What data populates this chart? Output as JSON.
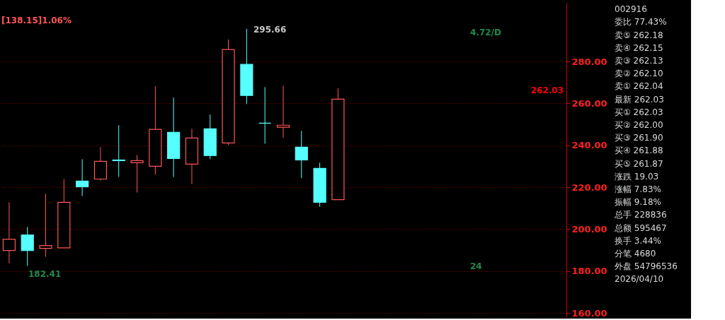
{
  "chart_data": [
    {
      "type": "candlestick",
      "categories": [
        null,
        null,
        null,
        null,
        null,
        null,
        null,
        null,
        null,
        null,
        null,
        null,
        null,
        null,
        null,
        null,
        null,
        null,
        null,
        null,
        null,
        null,
        null,
        null,
        null,
        null,
        null,
        null,
        null,
        null,
        null
      ],
      "ohlc": [
        [
          189.8,
          212.8,
          183.7,
          195.2
        ],
        [
          197.2,
          201.0,
          182.41,
          189.8
        ],
        [
          190.8,
          216.8,
          186.8,
          192.2
        ],
        [
          191.1,
          223.9,
          191.1,
          212.8
        ],
        [
          222.9,
          233.4,
          215.8,
          220.2
        ],
        [
          223.9,
          239.1,
          223.2,
          232.4
        ],
        [
          233.0,
          249.6,
          224.9,
          232.7
        ],
        [
          231.7,
          235.4,
          217.5,
          232.7
        ],
        [
          230.0,
          268.2,
          226.0,
          247.6
        ],
        [
          246.2,
          262.8,
          224.9,
          233.7
        ],
        [
          231.0,
          247.9,
          221.6,
          243.5
        ],
        [
          247.9,
          254.7,
          233.4,
          235.1
        ],
        [
          241.1,
          290.5,
          240.1,
          285.7
        ],
        [
          278.6,
          295.66,
          259.7,
          263.8
        ],
        [
          250.6,
          267.8,
          240.8,
          250.6
        ],
        [
          248.6,
          268.5,
          243.5,
          249.6
        ],
        [
          239.1,
          246.9,
          224.3,
          233.0
        ],
        [
          229.0,
          231.7,
          210.7,
          212.8
        ],
        [
          214.1,
          267.2,
          214.1,
          262.03
        ],
        null,
        null,
        null,
        null,
        null,
        null,
        null,
        null,
        null,
        null,
        null,
        null
      ],
      "colors": [
        "#ff5555",
        "#55ffff",
        "#ff5555",
        "#ff5555",
        "#55ffff",
        "#ff5555",
        "#55ffff",
        "#ff5555",
        "#ff5555",
        "#55ffff",
        "#ff5555",
        "#55ffff",
        "#ff5555",
        "#55ffff",
        "#55ffff",
        "#ff5555",
        "#55ffff",
        "#55ffff",
        "#ff5555",
        null,
        null,
        null,
        null,
        null,
        null,
        null,
        null,
        null,
        null,
        null,
        null
      ],
      "ylim": [
        158,
        308
      ],
      "yticks": [
        {
          "value": 160,
          "label": "160.00"
        },
        {
          "value": 180,
          "label": "180.00"
        },
        {
          "value": 200,
          "label": "200.00"
        },
        {
          "value": 220,
          "label": "220.00"
        },
        {
          "value": 240,
          "label": "240.00"
        },
        {
          "value": 260,
          "label": "260.00"
        },
        {
          "value": 280,
          "label": "280.00"
        }
      ],
      "grid": "y",
      "tick_labels": "y",
      "annotations": [
        "[138.15]1.06%",
        "4.72/D",
        "24",
        "295.66",
        "182.41",
        "262.03"
      ]
    },
    {
      "type": "other",
      "annotations": [
        "002916",
        "委比 77.43%",
        "卖⑤ 262.18",
        "卖④ 262.15",
        "卖③ 262.13",
        "卖② 262.10",
        "卖① 262.04",
        "最新 262.03",
        "买① 262.03",
        "买② 262.00",
        "买③ 261.90",
        "买④ 261.88",
        "买⑤ 261.87",
        "涨跌 19.03",
        "涨幅 7.83%",
        "振幅 9.18%",
        "总手 228836",
        "总额 595467",
        "换手 3.44%",
        "分笔 4680",
        "外盘 54796536",
        "2026/04/10"
      ]
    }
  ]
}
